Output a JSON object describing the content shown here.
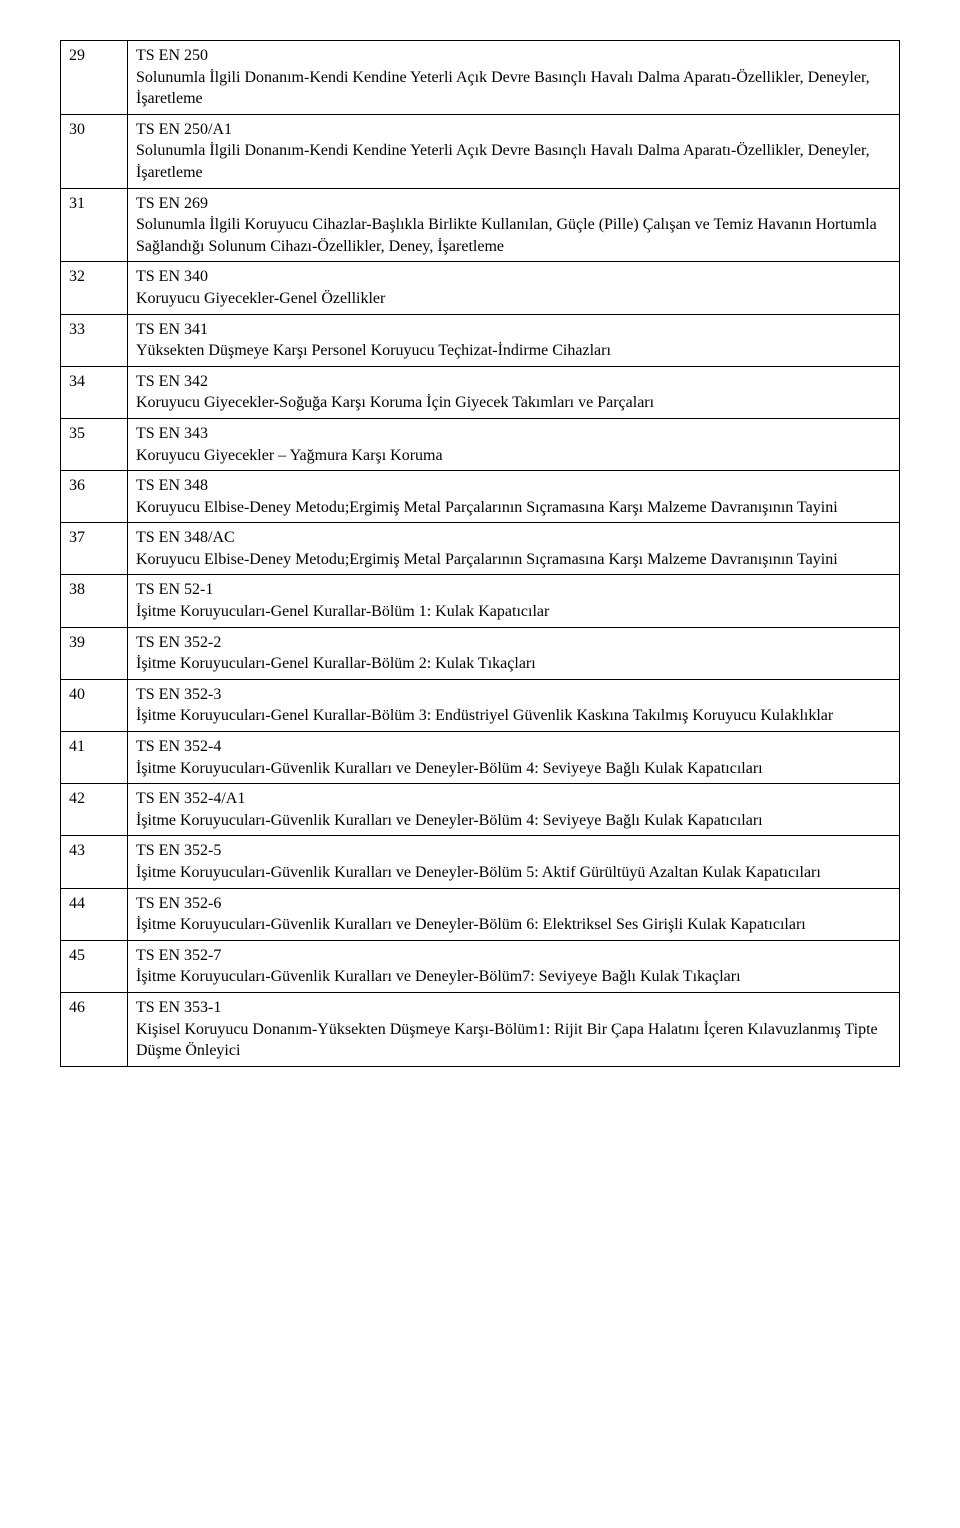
{
  "rows": [
    {
      "num": "29",
      "code": "TS EN 250",
      "desc": "Solunumla İlgili Donanım-Kendi Kendine Yeterli Açık Devre Basınçlı Havalı Dalma Aparatı-Özellikler, Deneyler, İşaretleme"
    },
    {
      "num": "30",
      "code": "TS EN 250/A1",
      "desc": "Solunumla İlgili Donanım-Kendi Kendine Yeterli Açık Devre Basınçlı Havalı Dalma Aparatı-Özellikler, Deneyler, İşaretleme"
    },
    {
      "num": "31",
      "code": "TS EN 269",
      "desc": "Solunumla İlgili Koruyucu Cihazlar-Başlıkla Birlikte Kullanılan, Güçle (Pille) Çalışan ve Temiz Havanın Hortumla Sağlandığı Solunum Cihazı-Özellikler, Deney, İşaretleme"
    },
    {
      "num": "32",
      "code": "TS EN 340",
      "desc": "Koruyucu Giyecekler-Genel Özellikler"
    },
    {
      "num": "33",
      "code": "TS EN 341",
      "desc": "Yüksekten Düşmeye Karşı Personel Koruyucu Teçhizat-İndirme Cihazları"
    },
    {
      "num": "34",
      "code": "TS EN 342",
      "desc": "Koruyucu Giyecekler-Soğuğa Karşı Koruma İçin Giyecek Takımları ve Parçaları"
    },
    {
      "num": "35",
      "code": "TS EN 343",
      "desc": "Koruyucu Giyecekler – Yağmura Karşı Koruma"
    },
    {
      "num": "36",
      "code": "TS EN 348",
      "desc": "Koruyucu Elbise-Deney Metodu;Ergimiş Metal Parçalarının Sıçramasına Karşı Malzeme Davranışının Tayini"
    },
    {
      "num": "37",
      "code": "TS EN 348/AC",
      "desc": "Koruyucu Elbise-Deney Metodu;Ergimiş Metal Parçalarının Sıçramasına Karşı Malzeme Davranışının Tayini"
    },
    {
      "num": "38",
      "code": "TS EN 52-1",
      "desc": "İşitme Koruyucuları-Genel Kurallar-Bölüm 1: Kulak Kapatıcılar"
    },
    {
      "num": "39",
      "code": "TS EN 352-2",
      "desc": "İşitme Koruyucuları-Genel Kurallar-Bölüm 2: Kulak Tıkaçları"
    },
    {
      "num": "40",
      "code": "TS EN 352-3",
      "desc": "İşitme Koruyucuları-Genel Kurallar-Bölüm 3: Endüstriyel Güvenlik Kaskına Takılmış Koruyucu Kulaklıklar"
    },
    {
      "num": "41",
      "code": "TS EN 352-4",
      "desc": "İşitme Koruyucuları-Güvenlik Kuralları ve Deneyler-Bölüm 4: Seviyeye Bağlı Kulak Kapatıcıları"
    },
    {
      "num": "42",
      "code": "TS EN 352-4/A1",
      "desc": "İşitme Koruyucuları-Güvenlik Kuralları ve Deneyler-Bölüm 4: Seviyeye Bağlı Kulak Kapatıcıları"
    },
    {
      "num": "43",
      "code": "TS EN 352-5",
      "desc": "İşitme Koruyucuları-Güvenlik Kuralları ve Deneyler-Bölüm 5: Aktif Gürültüyü Azaltan Kulak Kapatıcıları"
    },
    {
      "num": "44",
      "code": "TS EN 352-6",
      "desc": "İşitme Koruyucuları-Güvenlik Kuralları ve Deneyler-Bölüm 6: Elektriksel Ses Girişli Kulak Kapatıcıları"
    },
    {
      "num": "45",
      "code": "TS EN 352-7",
      "desc": "İşitme Koruyucuları-Güvenlik Kuralları ve Deneyler-Bölüm7: Seviyeye Bağlı Kulak Tıkaçları"
    },
    {
      "num": "46",
      "code": "TS EN 353-1",
      "desc": "Kişisel Koruyucu Donanım-Yüksekten Düşmeye Karşı-Bölüm1: Rijit Bir Çapa Halatını İçeren Kılavuzlanmış Tipte Düşme Önleyici"
    }
  ]
}
